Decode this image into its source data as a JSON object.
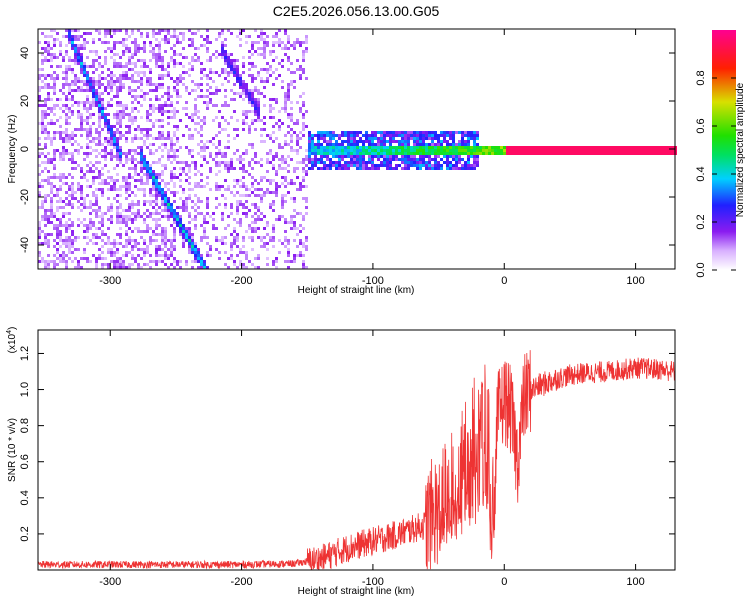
{
  "title": "C2E5.2026.056.13.00.G05",
  "chart_data": [
    {
      "type": "heatmap",
      "name": "spectrogram",
      "xlabel": "Height of straight line (km)",
      "ylabel": "Frequency (Hz)",
      "xlim": [
        -355,
        130
      ],
      "ylim": [
        -50,
        50
      ],
      "x_ticks": [
        -300,
        -200,
        -100,
        0,
        100
      ],
      "x_tick_labels": [
        "-300",
        "-200",
        "-100",
        "0",
        "100"
      ],
      "y_ticks": [
        -40,
        -20,
        0,
        20,
        40
      ],
      "y_tick_labels": [
        "-40",
        "-20",
        "0",
        "20",
        "40"
      ],
      "features": [
        {
          "name": "descending-track-a",
          "x": [
            -330,
            -296
          ],
          "y": [
            45,
            2
          ],
          "amplitude": 0.3
        },
        {
          "name": "descending-track-b",
          "x": [
            -275,
            -230
          ],
          "y": [
            -5,
            -48
          ],
          "amplitude": 0.35
        },
        {
          "name": "descending-track-c",
          "x": [
            -213,
            -190
          ],
          "y": [
            39,
            18
          ],
          "amplitude": 0.2
        },
        {
          "name": "carrier-band",
          "x": [
            -150,
            130
          ],
          "y": [
            0,
            0
          ],
          "amplitude": 1.0
        }
      ],
      "colorbar": {
        "label": "Normalized spectral amplitude",
        "range": [
          0,
          1
        ],
        "ticks": [
          0.0,
          0.2,
          0.4,
          0.6,
          0.8
        ],
        "tick_labels": [
          "0.0",
          "0.2",
          "0.4",
          "0.6",
          "0.8"
        ]
      }
    },
    {
      "type": "line",
      "name": "snr",
      "xlabel": "Height of straight line (km)",
      "ylabel": "SNR (10 * v/v)",
      "scale_label": "(x10",
      "scale_exponent": "4",
      "scale_suffix": ")",
      "xlim": [
        -355,
        130
      ],
      "ylim": [
        0,
        1.33
      ],
      "x_ticks": [
        -300,
        -200,
        -100,
        0,
        100
      ],
      "x_tick_labels": [
        "-300",
        "-200",
        "-100",
        "0",
        "100"
      ],
      "y_ticks": [
        0.2,
        0.4,
        0.6,
        0.8,
        1.0,
        1.2
      ],
      "y_tick_labels": [
        "0.2",
        "0.4",
        "0.6",
        "0.8",
        "1.0",
        "1.2"
      ],
      "color": "#ee3333",
      "series": [
        {
          "name": "SNR",
          "x": [
            -355,
            -300,
            -250,
            -200,
            -160,
            -140,
            -120,
            -100,
            -80,
            -60,
            -50,
            -40,
            -30,
            -25,
            -20,
            -15,
            -12,
            -10,
            -5,
            0,
            5,
            10,
            15,
            20,
            30,
            40,
            50,
            60,
            80,
            100,
            120,
            130
          ],
          "y": [
            0.03,
            0.03,
            0.03,
            0.03,
            0.035,
            0.06,
            0.12,
            0.16,
            0.2,
            0.25,
            0.35,
            0.45,
            0.6,
            0.75,
            0.85,
            0.82,
            0.8,
            0.25,
            0.85,
            0.95,
            0.88,
            0.6,
            0.95,
            1.0,
            1.03,
            1.06,
            1.08,
            1.09,
            1.1,
            1.12,
            1.11,
            1.1
          ]
        }
      ]
    }
  ],
  "colors": {
    "line": "#ee3333",
    "axis": "#000000",
    "background": "#ffffff"
  }
}
